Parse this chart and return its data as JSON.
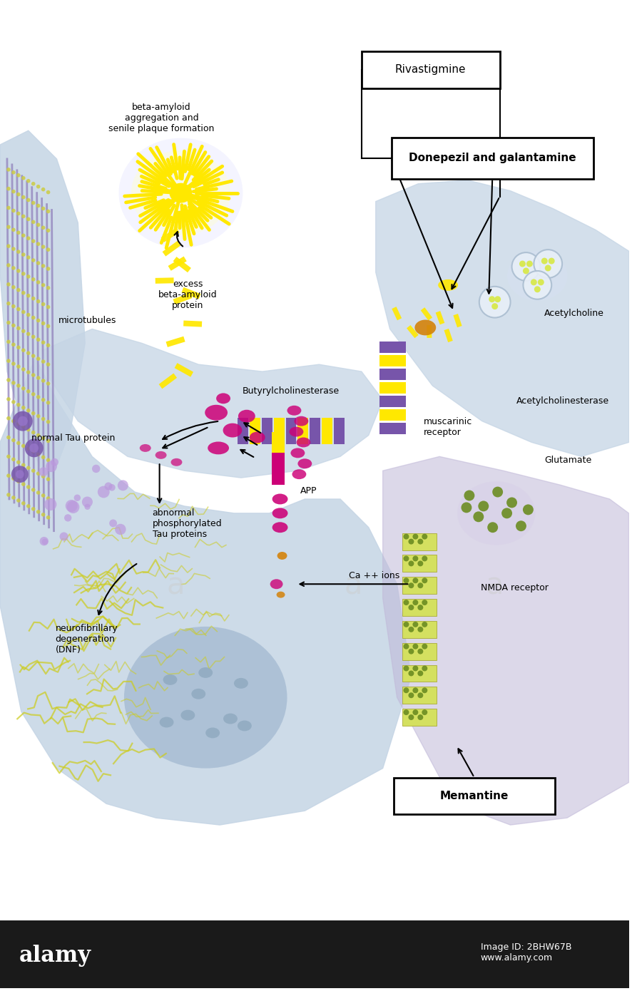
{
  "bg_color": "#ffffff",
  "cell_color": "#c5d5e5",
  "cell_color2": "#b8cce0",
  "nucleus_color": "#a8bcd0",
  "post_neuron_color": "#c5d5e5",
  "post2_color": "#c0b8d8",
  "drug_box_color": "#ffffff",
  "drug_box_border": "#000000",
  "yellow_color": "#FFE800",
  "magenta_color": "#CC0077",
  "purple_color": "#7755aa",
  "green_color": "#6B8C21",
  "orange_color": "#D4820A",
  "bottom_bar_color": "#1a1a1a",
  "labels": {
    "rivastigmine": "Rivastigmine",
    "donepezil": "Donepezil and galantamine",
    "memantine": "Memantine",
    "beta_amyloid_agg": "beta-amyloid\naggregation and\nsenile plaque formation",
    "excess_beta": "excess\nbeta-amyloid\nprotein",
    "butyryl": "Butyrylcholinesterase",
    "normal_tau": "normal Tau protein",
    "abnormal_tau": "abnormal\nphosphorylated\nTau proteins",
    "app": "APP",
    "ca_ions": "Ca ++ ions",
    "neurofibrillary": "neurofibrillary\ndegeneration\n(DNF)",
    "microtubules": "microtubules",
    "acetylcholine": "Acetylcholine",
    "acetylcholinesterase": "Acetylcholinesterase",
    "muscarinic": "muscarinic\nreceptor",
    "glutamate": "Glutamate",
    "nmda": "NMDA receptor",
    "alamy": "alamy",
    "image_id": "Image ID: 2BHW67B\nwww.alamy.com"
  }
}
